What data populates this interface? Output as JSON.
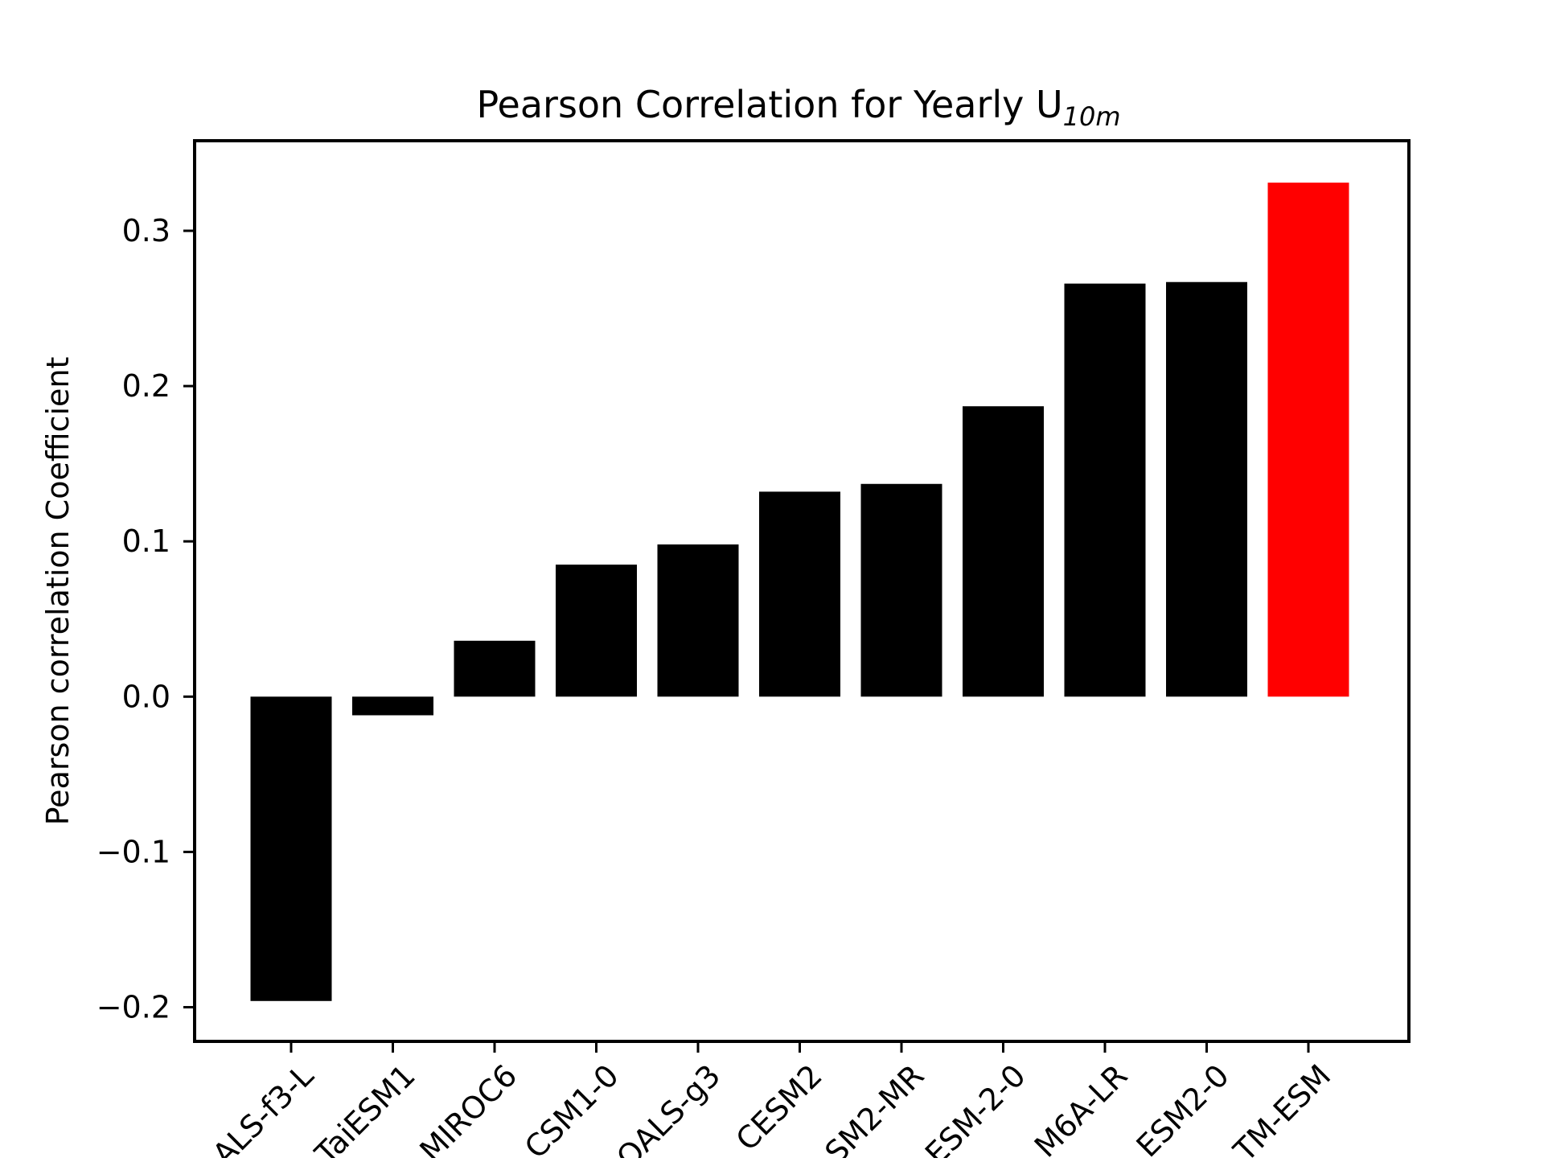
{
  "chart_data": {
    "type": "bar",
    "title": "Pearson Correlation for Yearly U",
    "title_subscript": "10m",
    "xlabel": "",
    "ylabel": "Pearson correlation Coefficient",
    "ylim": [
      -0.222,
      0.358
    ],
    "yticks": [
      -0.2,
      -0.1,
      0.0,
      0.1,
      0.2,
      0.3
    ],
    "ytick_labels": [
      "−0.2",
      "−0.1",
      "0.0",
      "0.1",
      "0.2",
      "0.3"
    ],
    "grid": false,
    "categories": [
      "ALS-f3-L",
      "TaiESM1",
      "MIROC6",
      "CSM1-0",
      "OALS-g3",
      "CESM2",
      "SM2-MR",
      "ESM-2-0",
      "M6A-LR",
      "ESM2-0",
      "TM-ESM"
    ],
    "values": [
      -0.196,
      -0.012,
      0.036,
      0.085,
      0.098,
      0.132,
      0.137,
      0.187,
      0.266,
      0.267,
      0.331
    ],
    "colors": [
      "#000000",
      "#000000",
      "#000000",
      "#000000",
      "#000000",
      "#000000",
      "#000000",
      "#000000",
      "#000000",
      "#000000",
      "#ff0000"
    ]
  }
}
